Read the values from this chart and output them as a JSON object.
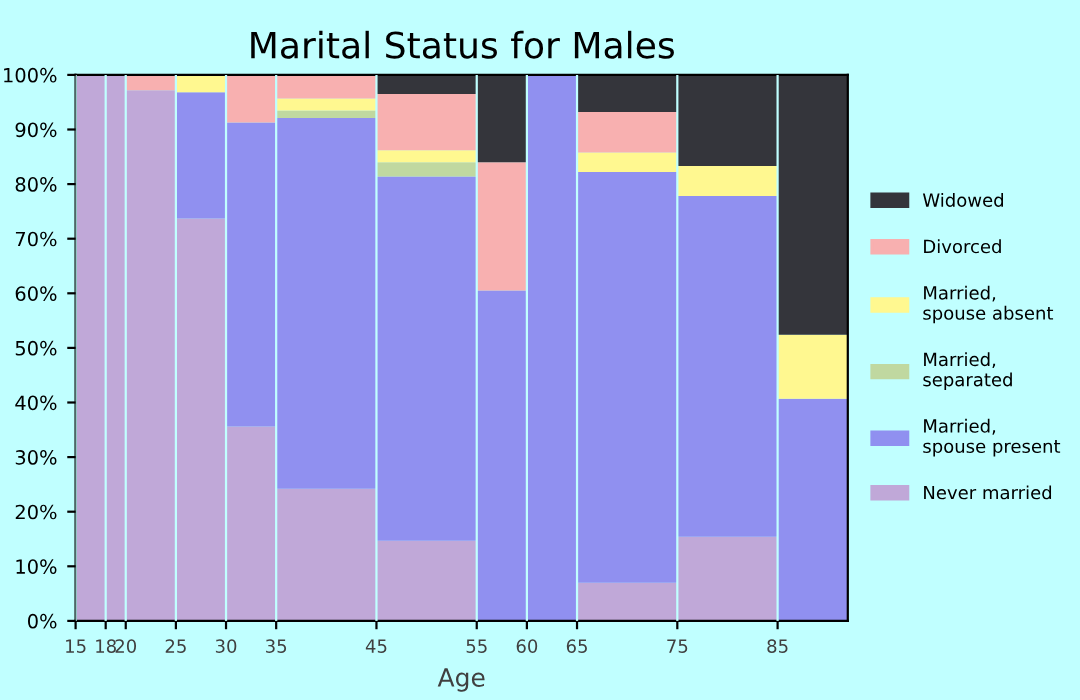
{
  "chart_data": {
    "type": "bar",
    "stacked": true,
    "title": "Marital Status for Males",
    "xlabel": "Age",
    "x": [
      16.5,
      19,
      22.5,
      27.5,
      32.5,
      40,
      50,
      57.5,
      62.5,
      70,
      80,
      88.5
    ],
    "xlim": [
      15,
      92
    ],
    "xticks": [
      15,
      18,
      20,
      25,
      30,
      35,
      45,
      55,
      60,
      65,
      75,
      85
    ],
    "ylim": [
      0,
      100
    ],
    "yticks": [
      {
        "value": 0,
        "label": "0%"
      },
      {
        "value": 10,
        "label": "10%"
      },
      {
        "value": 20,
        "label": "20%"
      },
      {
        "value": 30,
        "label": "30%"
      },
      {
        "value": 40,
        "label": "40%"
      },
      {
        "value": 50,
        "label": "50%"
      },
      {
        "value": 60,
        "label": "60%"
      },
      {
        "value": 70,
        "label": "70%"
      },
      {
        "value": 80,
        "label": "80%"
      },
      {
        "value": 90,
        "label": "90%"
      },
      {
        "value": 100,
        "label": "100%"
      }
    ],
    "grid": "x",
    "legend": "right",
    "series": [
      {
        "name": "Never married",
        "color": "#c0a8d8",
        "values": [
          100,
          100,
          97.2,
          73.7,
          35.6,
          24.2,
          14.7,
          0,
          0,
          7.0,
          15.4,
          0
        ]
      },
      {
        "name": "Married, spouse present",
        "color": "#9090f0",
        "values": [
          0,
          0,
          0,
          23.1,
          55.7,
          67.9,
          66.7,
          60.5,
          100,
          75.2,
          62.4,
          40.7
        ]
      },
      {
        "name": "Married, separated",
        "color": "#c0d8a0",
        "values": [
          0,
          0,
          0,
          0,
          0,
          1.4,
          2.6,
          0,
          0,
          0,
          0,
          0
        ]
      },
      {
        "name": "Married, spouse absent",
        "color": "#fff890",
        "values": [
          0,
          0,
          0,
          3.2,
          0,
          2.2,
          2.2,
          0,
          0,
          3.6,
          5.5,
          11.7
        ]
      },
      {
        "name": "Divorced",
        "color": "#f8b0b0",
        "values": [
          0,
          0,
          2.8,
          0,
          8.7,
          4.3,
          10.3,
          23.5,
          0,
          7.4,
          0,
          0
        ]
      },
      {
        "name": "Widowed",
        "color": "#34353b",
        "values": [
          0,
          0,
          0,
          0,
          0,
          0,
          3.5,
          16.0,
          0,
          6.8,
          16.7,
          47.6
        ]
      }
    ]
  }
}
